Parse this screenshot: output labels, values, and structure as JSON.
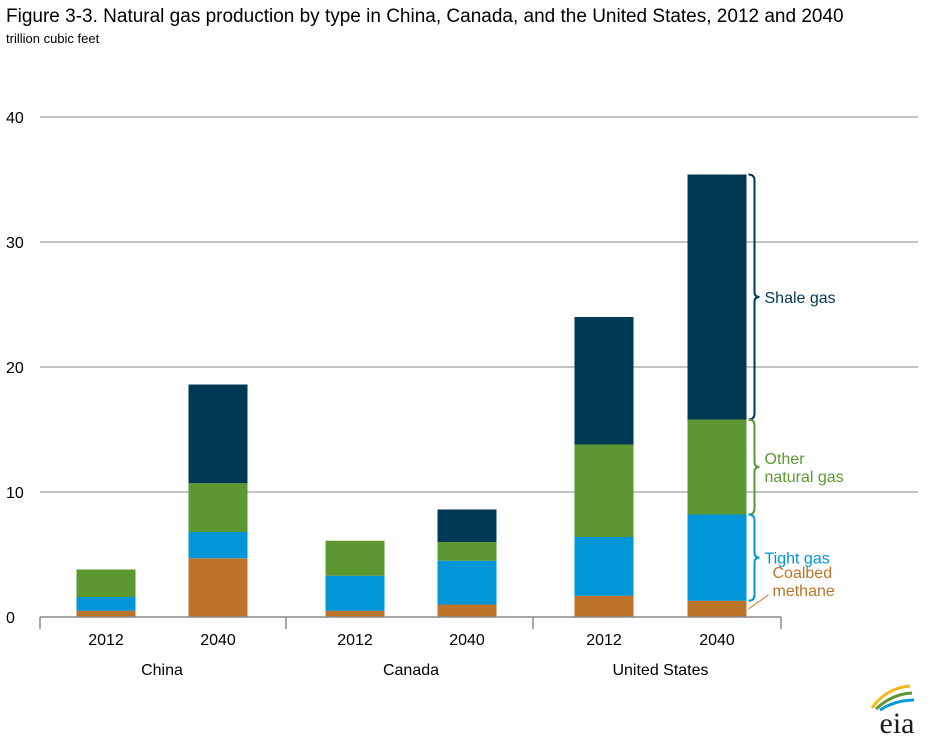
{
  "chart_data": {
    "type": "bar",
    "stacked": true,
    "title": "Figure 3-3. Natural gas production by type in China, Canada, and the United States, 2012 and 2040",
    "subtitle": "trillion cubic feet",
    "xlabel": "",
    "ylabel": "",
    "ylim": [
      0,
      40
    ],
    "yticks": [
      0,
      10,
      20,
      30,
      40
    ],
    "grid": true,
    "groups": [
      "China",
      "Canada",
      "United States"
    ],
    "categories": [
      "2012",
      "2040",
      "2012",
      "2040",
      "2012",
      "2040"
    ],
    "series": [
      {
        "name": "Coalbed methane",
        "color": "#BD7428",
        "values": [
          0.5,
          4.7,
          0.5,
          1.0,
          1.7,
          1.3
        ]
      },
      {
        "name": "Tight gas",
        "color": "#0096D7",
        "values": [
          1.1,
          2.1,
          2.8,
          3.5,
          4.7,
          6.9
        ]
      },
      {
        "name": "Other natural gas",
        "color": "#5D9732",
        "values": [
          2.2,
          3.9,
          2.8,
          1.5,
          7.4,
          7.6
        ]
      },
      {
        "name": "Shale gas",
        "color": "#003953",
        "values": [
          0.0,
          7.9,
          0.0,
          2.6,
          10.2,
          19.6
        ]
      }
    ],
    "annotations": [
      {
        "series": "Shale gas",
        "lines": [
          "Shale gas"
        ],
        "color": "#003953"
      },
      {
        "series": "Other natural gas",
        "lines": [
          "Other",
          "natural gas"
        ],
        "color": "#5D9732"
      },
      {
        "series": "Tight gas",
        "lines": [
          "Tight gas"
        ],
        "color": "#0096D7"
      },
      {
        "series": "Coalbed methane",
        "lines": [
          "Coalbed",
          "methane"
        ],
        "color": "#BD7428"
      }
    ]
  },
  "logo": {
    "text": "eia"
  }
}
